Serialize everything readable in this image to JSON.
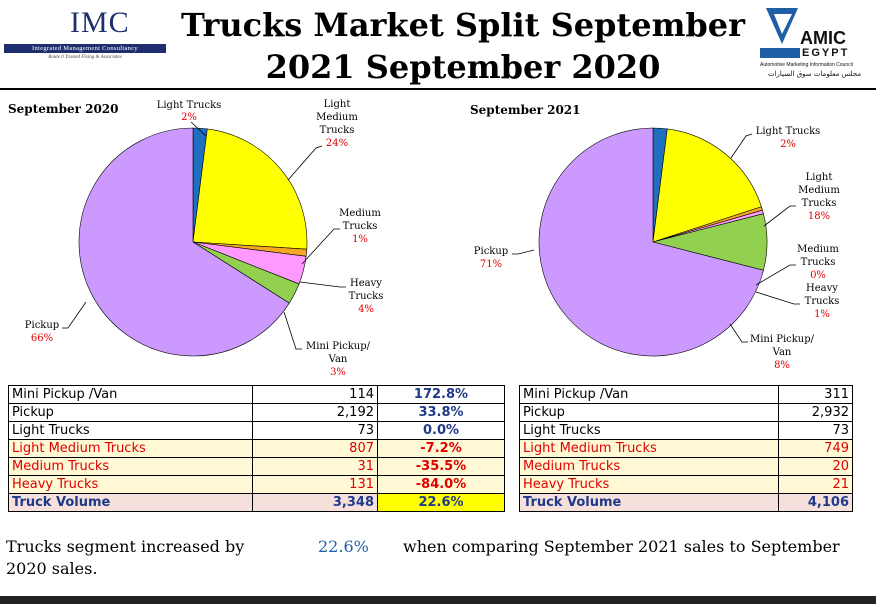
{
  "header": {
    "imc_logo_text": "IMC",
    "imc_bar_text": "Integrated Management Consultancy",
    "imc_tagline": "Route 0 Trusted Fixing & Associates",
    "title": "Trucks Market Split September 2021 September 2020",
    "amic_text": "AMIC",
    "amic_sub": "EGYPT",
    "amic_caption": "Automotive Marketing Information Council",
    "amic_arabic": "مجلس معلومات سوق السيارات"
  },
  "chart_data": [
    {
      "type": "pie",
      "title": "September 2020",
      "slices": [
        {
          "label": "Light Trucks",
          "value": 2,
          "pct_label": "2%",
          "color": "#1f6fc0"
        },
        {
          "label": "Light Medium Trucks",
          "value": 24,
          "pct_label": "24%",
          "color": "#ffff00"
        },
        {
          "label": "Medium Trucks",
          "value": 1,
          "pct_label": "1%",
          "color": "#f5a623"
        },
        {
          "label": "Heavy Trucks",
          "value": 4,
          "pct_label": "4%",
          "color": "#ff99ff"
        },
        {
          "label": "Mini Pickup/ Van",
          "value": 3,
          "pct_label": "3%",
          "color": "#92d050"
        },
        {
          "label": "Pickup",
          "value": 66,
          "pct_label": "66%",
          "color": "#cc99ff"
        }
      ]
    },
    {
      "type": "pie",
      "title": "September 2021",
      "slices": [
        {
          "label": "Light Trucks",
          "value": 2,
          "pct_label": "2%",
          "color": "#1f6fc0"
        },
        {
          "label": "Light Medium Trucks",
          "value": 18,
          "pct_label": "18%",
          "color": "#ffff00"
        },
        {
          "label": "Medium Trucks",
          "value": 0.5,
          "pct_label": "0%",
          "color": "#f5a623"
        },
        {
          "label": "Heavy Trucks",
          "value": 0.5,
          "pct_label": "1%",
          "color": "#ff99ff"
        },
        {
          "label": "Mini Pickup/ Van",
          "value": 8,
          "pct_label": "8%",
          "color": "#92d050"
        },
        {
          "label": "Pickup",
          "value": 71,
          "pct_label": "71%",
          "color": "#cc99ff"
        }
      ]
    }
  ],
  "table_2020": [
    {
      "name": "Mini Pickup /Van",
      "value": "114",
      "change": "172.8%"
    },
    {
      "name": "Pickup",
      "value": "2,192",
      "change": "33.8%"
    },
    {
      "name": "Light Trucks",
      "value": "73",
      "change": "0.0%"
    },
    {
      "name": "Light Medium Trucks",
      "value": "807",
      "change": "-7.2%"
    },
    {
      "name": "Medium Trucks",
      "value": "31",
      "change": "-35.5%"
    },
    {
      "name": "Heavy Trucks",
      "value": "131",
      "change": "-84.0%"
    },
    {
      "name": "Truck Volume",
      "value": "3,348",
      "change": "22.6%"
    }
  ],
  "table_2021": [
    {
      "name": "Mini Pickup /Van",
      "value": "311"
    },
    {
      "name": "Pickup",
      "value": "2,932"
    },
    {
      "name": "Light Trucks",
      "value": "73"
    },
    {
      "name": "Light Medium Trucks",
      "value": "749"
    },
    {
      "name": "Medium Trucks",
      "value": "20"
    },
    {
      "name": "Heavy Trucks",
      "value": "21"
    },
    {
      "name": "Truck Volume",
      "value": "4,106"
    }
  ],
  "summary": {
    "part1": "Trucks segment increased by",
    "part2": "22.6%",
    "part3": "when comparing September 2021 sales to September",
    "part4": "2020 sales."
  }
}
